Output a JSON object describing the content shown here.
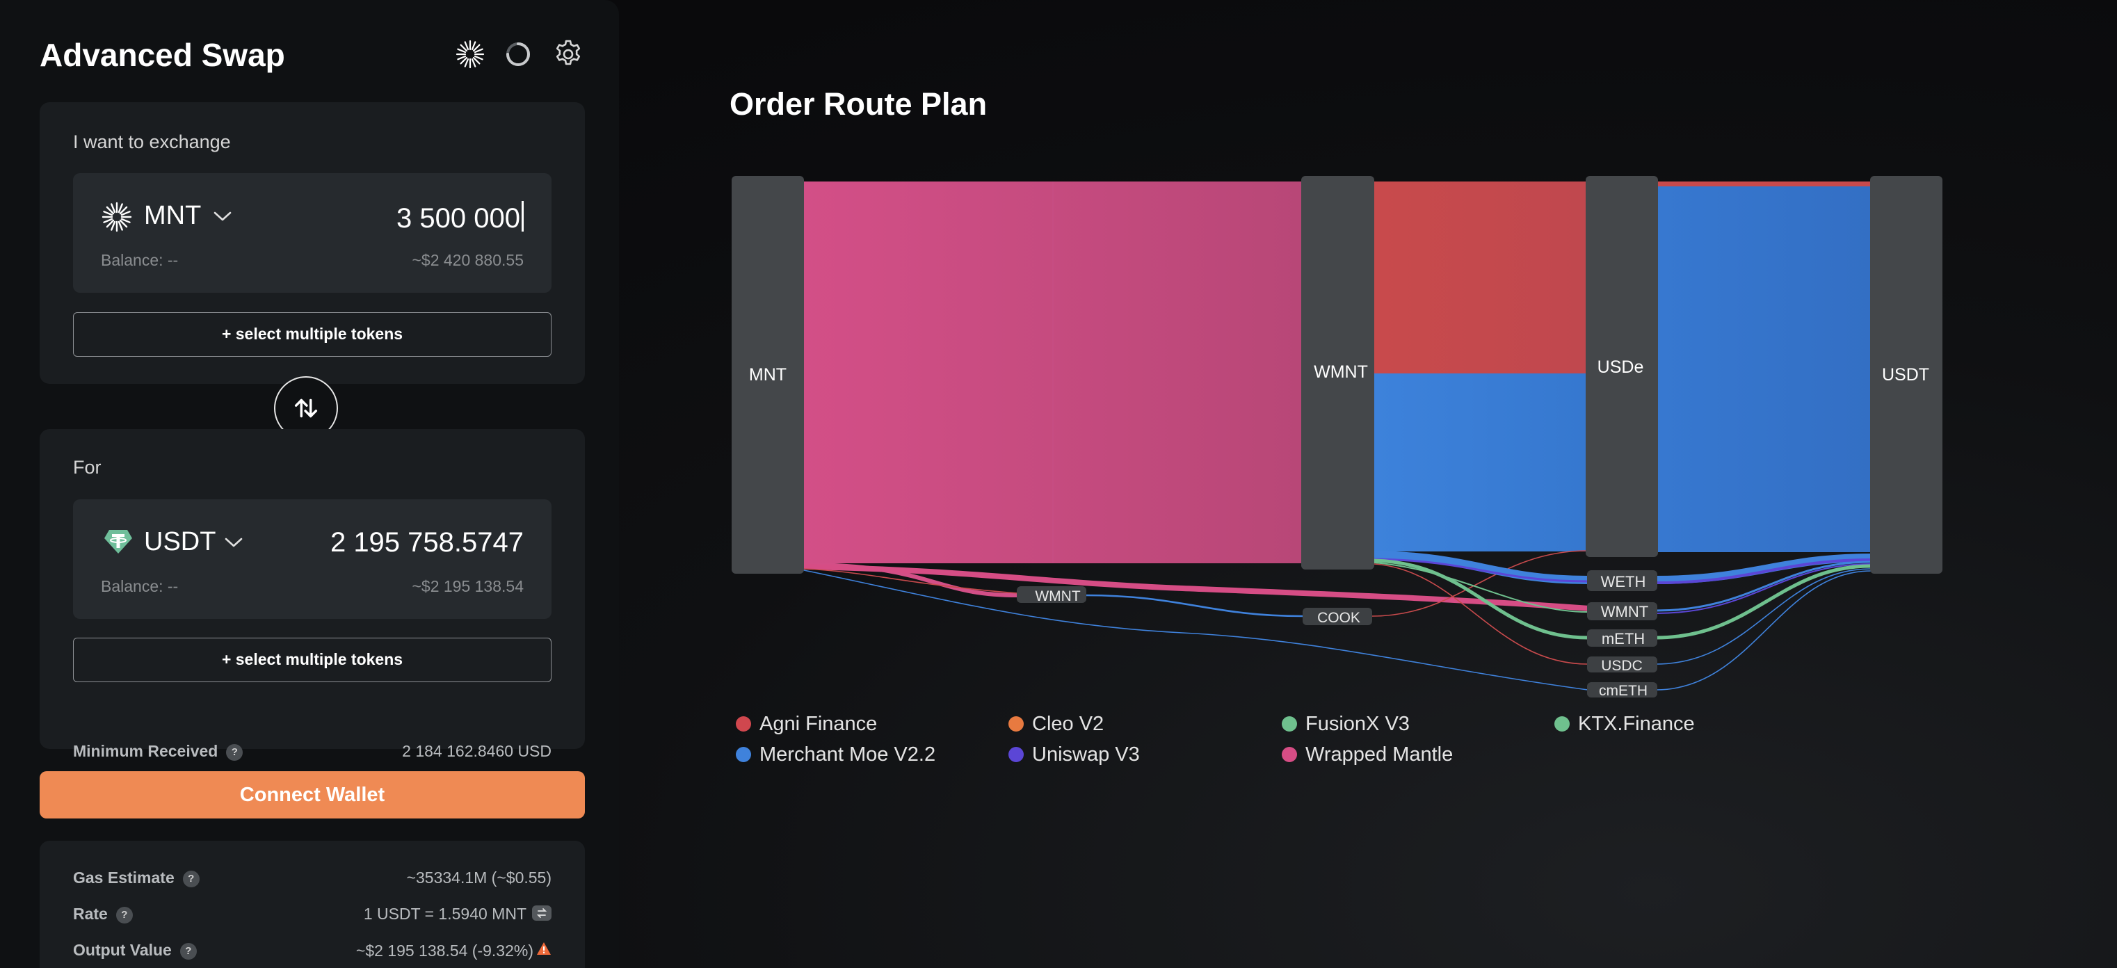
{
  "swap": {
    "title": "Advanced Swap",
    "from": {
      "label": "I want to exchange",
      "token": "MNT",
      "amount": "3 500 000",
      "balance": "Balance: --",
      "usd_value": "~$2 420 880.55",
      "multi_label": "+ select multiple tokens"
    },
    "to": {
      "label": "For",
      "token": "USDT",
      "amount": "2 195 758.5747",
      "balance": "Balance: --",
      "usd_value": "~$2 195 138.54",
      "multi_label": "+ select multiple tokens",
      "min_received_label": "Minimum Received",
      "min_received_value": "2 184 162.8460 USD"
    },
    "connect_label": "Connect Wallet",
    "info": {
      "gas_label": "Gas Estimate",
      "gas_value": "~35334.1M (~$0.55)",
      "rate_label": "Rate",
      "rate_value": "1 USDT = 1.5940 MNT",
      "output_label": "Output Value",
      "output_value": "~$2 195 138.54  (-9.32%)"
    },
    "help_glyph": "?",
    "icons": {
      "header": [
        "sunburst-icon",
        "refresh-icon",
        "gear-icon"
      ],
      "swap_direction": "swap-arrows-icon",
      "warning": "warning-icon"
    }
  },
  "route": {
    "title": "Order Route Plan",
    "nodes": {
      "mnt": "MNT",
      "wmnt_main": "WMNT",
      "usde": "USDe",
      "usdt": "USDT",
      "wmnt_small": "WMNT",
      "cook": "COOK",
      "weth": "WETH",
      "wmnt_side": "WMNT",
      "meth": "mETH",
      "usdc": "USDC",
      "cmeth": "cmETH"
    },
    "legend": [
      {
        "label": "Agni Finance",
        "color": "#d0474e"
      },
      {
        "label": "Cleo V2",
        "color": "#e87a40"
      },
      {
        "label": "FusionX V3",
        "color": "#6fc08e"
      },
      {
        "label": "KTX.Finance",
        "color": "#6fc08e"
      },
      {
        "label": "Merchant Moe V2.2",
        "color": "#3f82dc"
      },
      {
        "label": "Uniswap V3",
        "color": "#5b46d6"
      },
      {
        "label": "Wrapped Mantle",
        "color": "#d64d85"
      }
    ]
  }
}
